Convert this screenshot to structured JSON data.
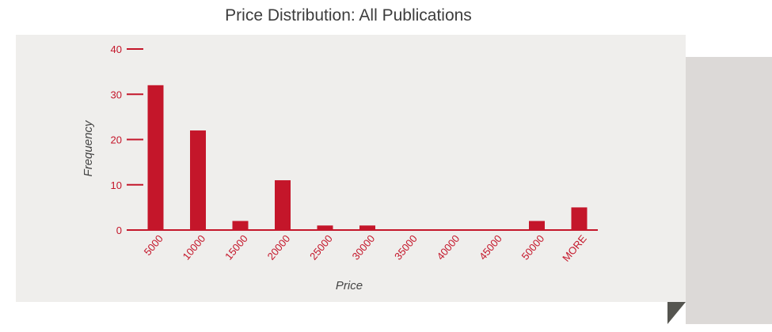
{
  "chart_data": {
    "type": "bar",
    "title": "Price Distribution: All Publications",
    "xlabel": "Price",
    "ylabel": "Frequency",
    "categories": [
      "5000",
      "10000",
      "15000",
      "20000",
      "25000",
      "30000",
      "35000",
      "40000",
      "45000",
      "50000",
      "MORE"
    ],
    "values": [
      32,
      22,
      2,
      11,
      1,
      1,
      0,
      0,
      0,
      2,
      5
    ],
    "yticks": [
      0,
      10,
      20,
      30,
      40
    ],
    "ylim": [
      0,
      40
    ],
    "grid": false,
    "legend": "none",
    "colors": {
      "bar": "#c4162a",
      "axis": "#c4162a",
      "background": "#efeeec",
      "shadow_panel": "#dcd9d7",
      "fold": "#555550"
    }
  }
}
